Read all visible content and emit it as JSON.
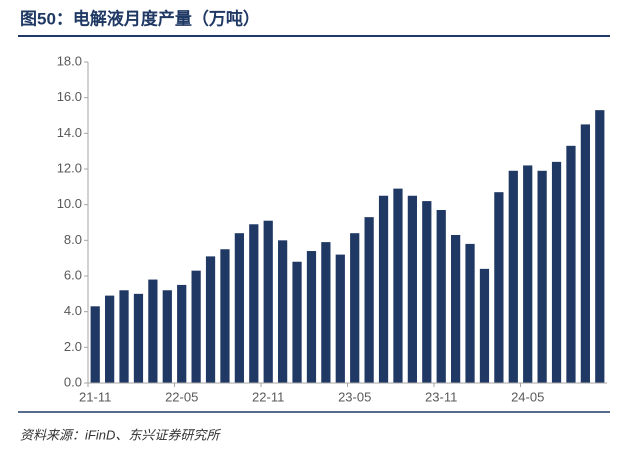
{
  "chart_data": {
    "type": "bar",
    "title": "图50：电解液月度产量（万吨）",
    "source": "资料来源：iFinD、东兴证券研究所",
    "categories": [
      "21-11",
      null,
      null,
      null,
      null,
      null,
      "22-05",
      null,
      null,
      null,
      null,
      null,
      "22-11",
      null,
      null,
      null,
      null,
      null,
      "23-05",
      null,
      null,
      null,
      null,
      null,
      "23-11",
      null,
      null,
      null,
      null,
      null,
      "24-05",
      null,
      null,
      null,
      null,
      null
    ],
    "values": [
      4.3,
      4.9,
      5.2,
      5.0,
      5.8,
      5.2,
      5.5,
      6.3,
      7.1,
      7.5,
      8.4,
      8.9,
      9.1,
      8.0,
      6.8,
      7.4,
      7.9,
      7.2,
      8.4,
      9.3,
      10.5,
      10.9,
      10.5,
      10.2,
      9.7,
      8.3,
      7.8,
      6.4,
      10.7,
      11.9,
      12.2,
      11.9,
      12.4,
      13.3,
      14.5,
      15.3
    ],
    "color": "#1f3864",
    "ylim": [
      0,
      18
    ],
    "yticks": [
      {
        "value": 0,
        "label": "0.0"
      },
      {
        "value": 2,
        "label": "2.0"
      },
      {
        "value": 4,
        "label": "4.0"
      },
      {
        "value": 6,
        "label": "6.0"
      },
      {
        "value": 8,
        "label": "8.0"
      },
      {
        "value": 10,
        "label": "10.0"
      },
      {
        "value": 12,
        "label": "12.0"
      },
      {
        "value": 14,
        "label": "14.0"
      },
      {
        "value": 16,
        "label": "16.0"
      },
      {
        "value": 18,
        "label": "18.0"
      }
    ],
    "grid": false
  }
}
